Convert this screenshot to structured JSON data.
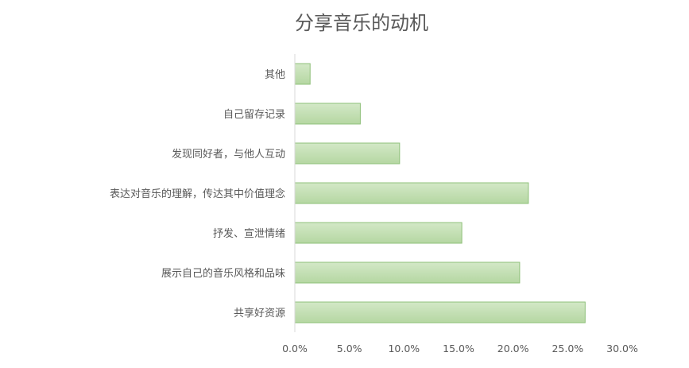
{
  "chart_data": {
    "type": "bar",
    "orientation": "horizontal",
    "title": "分享音乐的动机",
    "categories": [
      "其他",
      "自己留存记录",
      "发现同好者，与他人互动",
      "表达对音乐的理解，传达其中价值理念",
      "抒发、宣泄情绪",
      "展示自己的音乐风格和品味",
      "共享好资源"
    ],
    "values": [
      1.4,
      6.0,
      9.6,
      21.4,
      15.3,
      20.6,
      26.6
    ],
    "xlim": [
      0,
      30
    ],
    "xticks": [
      "0.0%",
      "5.0%",
      "10.0%",
      "15.0%",
      "20.0%",
      "25.0%",
      "30.0%"
    ],
    "xlabel": "",
    "ylabel": "",
    "grid": false,
    "legend": "none",
    "colors": {
      "bar_fill": "#c3dfb3",
      "bar_stroke": "#8fc07a",
      "text": "#595959",
      "axis": "#d9d9d9"
    }
  }
}
